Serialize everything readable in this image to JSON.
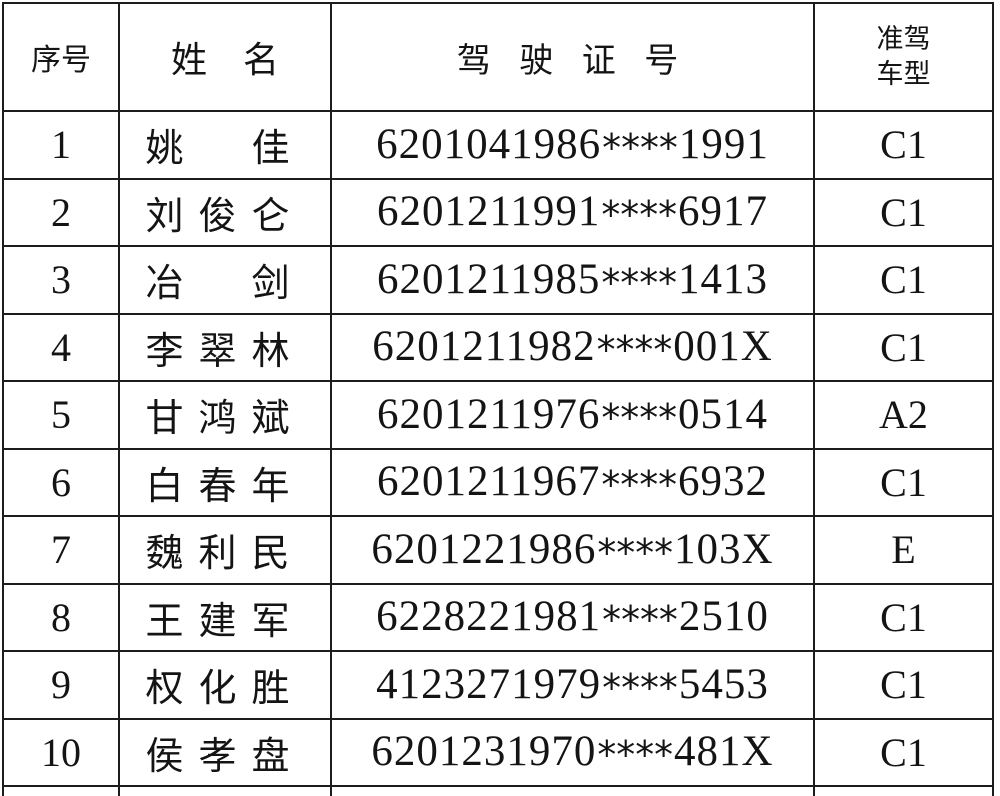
{
  "document": {
    "type": "driver-license-list-table"
  },
  "colors": {
    "border": "#1c1c1c",
    "text": "#141414",
    "background": "#ffffff"
  },
  "table": {
    "headers": {
      "no": "序号",
      "name": "姓　名",
      "license": "驾 驶 证 号",
      "vehicle": "准驾\n车型"
    },
    "rows": [
      {
        "no": "1",
        "name": "姚　佳",
        "license": "6201041986****1991",
        "vehicle": "C1"
      },
      {
        "no": "2",
        "name": "刘俊仑",
        "license": "6201211991****6917",
        "vehicle": "C1"
      },
      {
        "no": "3",
        "name": "冶　剑",
        "license": "6201211985****1413",
        "vehicle": "C1"
      },
      {
        "no": "4",
        "name": "李翠林",
        "license": "6201211982****001X",
        "vehicle": "C1"
      },
      {
        "no": "5",
        "name": "甘鸿斌",
        "license": "6201211976****0514",
        "vehicle": "A2"
      },
      {
        "no": "6",
        "name": "白春年",
        "license": "6201211967****6932",
        "vehicle": "C1"
      },
      {
        "no": "7",
        "name": "魏利民",
        "license": "6201221986****103X",
        "vehicle": "E"
      },
      {
        "no": "8",
        "name": "王建军",
        "license": "6228221981****2510",
        "vehicle": "C1"
      },
      {
        "no": "9",
        "name": "权化胜",
        "license": "4123271979****5453",
        "vehicle": "C1"
      },
      {
        "no": "10",
        "name": "侯孝盘",
        "license": "6201231970****481X",
        "vehicle": "C1"
      }
    ]
  }
}
